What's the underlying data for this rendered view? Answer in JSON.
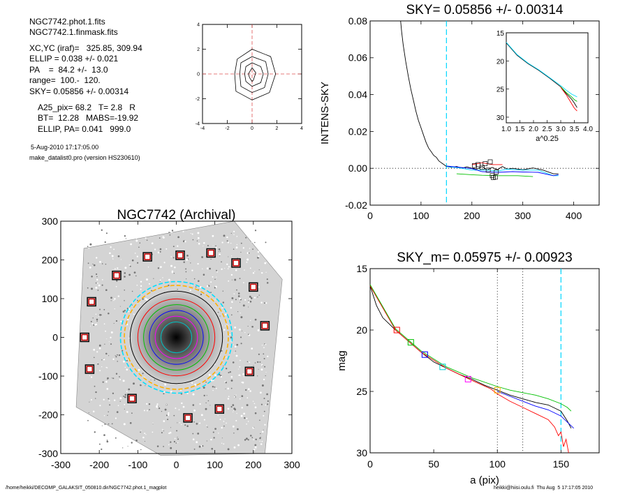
{
  "info": {
    "lines": [
      "NGC7742.phot.1.fits",
      "NGC7742.1.finmask.fits",
      "XC,YC (iraf)=   325.85, 309.94",
      "ELLIP = 0.038 +/- 0.021",
      "PA    =  84.2 +/-  13.0",
      "range=  100.-  120.",
      "SKY= 0.05856 +/- 0.00314",
      "A25_pix= 68.2   T= 2.8   R",
      "BT=  12.28   MABS=-19.92",
      "ELLIP, PA= 0.041   999.0"
    ],
    "date": "5-Aug-2010 17:17:05.00",
    "program": "make_datalist0.pro (version HS230610)"
  },
  "footer": {
    "left": "/home/heikki/DECOMP_GALAKSIT_050810.dir/NGC7742.phot.1_magplot",
    "right": "heikki@hiisi.oulu.fi  Thu Aug  5 17:17:05 2010"
  },
  "chart_data": [
    {
      "id": "contour",
      "type": "contour",
      "title": "",
      "xlim": [
        -4,
        4
      ],
      "ylim": [
        -4,
        4
      ],
      "xticks": [
        "-4",
        "-2",
        "0",
        "2",
        "4"
      ],
      "yticks": [
        "4",
        "2",
        "0",
        "-2",
        "-4"
      ],
      "levels": [
        [
          [
            -1.4,
            0
          ],
          [
            -1.2,
            1.2
          ],
          [
            0,
            2
          ],
          [
            1.5,
            1.4
          ],
          [
            1.9,
            0
          ],
          [
            1.4,
            -1.5
          ],
          [
            0,
            -2.1
          ],
          [
            -1.3,
            -1.4
          ]
        ],
        [
          [
            -1.0,
            0
          ],
          [
            -0.9,
            0.9
          ],
          [
            0,
            1.4
          ],
          [
            1.1,
            1.0
          ],
          [
            1.3,
            0
          ],
          [
            1.0,
            -1.1
          ],
          [
            0,
            -1.5
          ],
          [
            -0.9,
            -1.0
          ]
        ],
        [
          [
            -0.6,
            0
          ],
          [
            -0.5,
            0.6
          ],
          [
            0,
            0.9
          ],
          [
            0.7,
            0.6
          ],
          [
            0.9,
            0
          ],
          [
            0.7,
            -0.7
          ],
          [
            0,
            -1.0
          ],
          [
            -0.5,
            -0.6
          ]
        ],
        [
          [
            -0.3,
            0
          ],
          [
            0,
            0.5
          ],
          [
            0.3,
            0.1
          ],
          [
            0.1,
            -0.5
          ],
          [
            0,
            -0.6
          ],
          [
            -0.2,
            -0.3
          ]
        ]
      ],
      "crosshair": [
        0,
        0
      ]
    },
    {
      "id": "sky",
      "type": "line",
      "title": "SKY= 0.05856 +/- 0.00314",
      "xlabel": "",
      "ylabel": "INTENS-SKY",
      "xlim": [
        0,
        450
      ],
      "ylim": [
        -0.02,
        0.08
      ],
      "xticks": [
        "0",
        "100",
        "200",
        "300",
        "400"
      ],
      "yticks": [
        "0.08",
        "0.06",
        "0.04",
        "0.02",
        "0.00",
        "-0.02"
      ],
      "vline": 150,
      "series": [
        {
          "values": [
            [
              60,
              0.08
            ],
            [
              62,
              0.074
            ],
            [
              65,
              0.067
            ],
            [
              70,
              0.058
            ],
            [
              75,
              0.05
            ],
            [
              80,
              0.043
            ],
            [
              85,
              0.037
            ],
            [
              90,
              0.031
            ],
            [
              95,
              0.026
            ],
            [
              100,
              0.022
            ],
            [
              105,
              0.018
            ],
            [
              110,
              0.014
            ],
            [
              115,
              0.011
            ],
            [
              120,
              0.009
            ],
            [
              125,
              0.007
            ],
            [
              130,
              0.006
            ],
            [
              135,
              0.004
            ],
            [
              140,
              0.003
            ],
            [
              145,
              0.002
            ],
            [
              150,
              0.001
            ],
            [
              160,
              0.0005
            ],
            [
              170,
              0.001
            ],
            [
              180,
              0
            ],
            [
              190,
              0.0008
            ],
            [
              200,
              0
            ],
            [
              210,
              -0.0004
            ],
            [
              220,
              0.001
            ],
            [
              230,
              -0.001
            ],
            [
              240,
              0.0005
            ],
            [
              250,
              -0.0008
            ],
            [
              260,
              0.001
            ],
            [
              270,
              -0.0005
            ],
            [
              280,
              0
            ],
            [
              300,
              -0.0008
            ],
            [
              320,
              0.0002
            ],
            [
              340,
              -0.001
            ],
            [
              360,
              -0.003
            ],
            [
              370,
              -0.003
            ]
          ]
        },
        {
          "values": [
            [
              150,
              0.001
            ],
            [
              180,
              0
            ],
            [
              200,
              -0.001
            ],
            [
              230,
              -0.001
            ],
            [
              250,
              -0.0015
            ],
            [
              270,
              -0.0005
            ],
            [
              300,
              -0.001
            ],
            [
              330,
              -0.001
            ],
            [
              360,
              -0.004
            ],
            [
              370,
              -0.004
            ]
          ]
        },
        {
          "values": [
            [
              150,
              0.0012
            ],
            [
              180,
              0.0004
            ],
            [
              200,
              -0.0002
            ],
            [
              220,
              -0.0018
            ],
            [
              250,
              -0.0022
            ],
            [
              280,
              -0.0018
            ],
            [
              300,
              -0.002
            ],
            [
              330,
              -0.0022
            ],
            [
              360,
              -0.004
            ],
            [
              370,
              -0.0035
            ]
          ]
        },
        {
          "values": [
            [
              170,
              -0.003
            ],
            [
              200,
              -0.0035
            ],
            [
              220,
              -0.0038
            ],
            [
              250,
              -0.004
            ],
            [
              290,
              -0.004
            ],
            [
              320,
              -0.0045
            ]
          ]
        },
        {
          "values": [
            [
              200,
              0.002
            ],
            [
              220,
              0.003
            ],
            [
              240,
              0.002
            ],
            [
              260,
              0.002
            ]
          ]
        }
      ],
      "markers": [
        [
          205,
          0.0015
        ],
        [
          212,
          0.002
        ],
        [
          220,
          0.0005
        ],
        [
          226,
          0.0025
        ],
        [
          232,
          -0.001
        ],
        [
          236,
          0.0035
        ],
        [
          240,
          -0.004
        ],
        [
          242,
          -0.005
        ],
        [
          246,
          -0.0048
        ],
        [
          248,
          -0.002
        ]
      ],
      "inset": {
        "xlabel": "a^0.25",
        "xlim": [
          1.0,
          4.0
        ],
        "ylim": [
          15,
          31
        ],
        "xticks": [
          "1.0",
          "1.5",
          "2.0",
          "2.5",
          "3.0",
          "3.5",
          "4.0"
        ],
        "yticks": [
          "15",
          "20",
          "25",
          "30"
        ],
        "series": [
          {
            "values": [
              [
                1.0,
                16.8
              ],
              [
                1.4,
                19.0
              ],
              [
                1.8,
                20.5
              ],
              [
                2.2,
                21.7
              ],
              [
                2.6,
                23.1
              ],
              [
                3.0,
                24.6
              ],
              [
                3.2,
                25.8
              ],
              [
                3.4,
                26.8
              ],
              [
                3.5,
                27.5
              ],
              [
                3.6,
                28.3
              ]
            ]
          },
          {
            "values": [
              [
                3.0,
                24.6
              ],
              [
                3.2,
                25.6
              ],
              [
                3.4,
                26.4
              ],
              [
                3.5,
                26.9
              ],
              [
                3.6,
                27.2
              ]
            ]
          },
          {
            "values": [
              [
                3.0,
                24.7
              ],
              [
                3.2,
                26.0
              ],
              [
                3.3,
                26.8
              ],
              [
                3.4,
                27.6
              ],
              [
                3.5,
                28.4
              ],
              [
                3.6,
                28.9
              ]
            ]
          },
          {
            "values": [
              [
                1.0,
                16.7
              ],
              [
                1.4,
                18.9
              ],
              [
                1.8,
                20.4
              ],
              [
                2.2,
                21.6
              ],
              [
                2.6,
                23.0
              ],
              [
                3.0,
                24.4
              ],
              [
                3.2,
                25.2
              ],
              [
                3.4,
                25.9
              ],
              [
                3.6,
                26.4
              ]
            ]
          }
        ]
      }
    },
    {
      "id": "image",
      "type": "image",
      "title": "NGC7742 (Archival)",
      "xlim": [
        -300,
        300
      ],
      "ylim": [
        -300,
        300
      ],
      "xticks": [
        "-300",
        "-200",
        "-100",
        "0",
        "100",
        "200",
        "300"
      ],
      "yticks": [
        "300",
        "200",
        "100",
        "0",
        "-100",
        "-200",
        "-300"
      ],
      "frame": [
        [
          -240,
          230
        ],
        [
          150,
          300
        ],
        [
          275,
          150
        ],
        [
          230,
          -300
        ],
        [
          -40,
          -305
        ],
        [
          -260,
          -180
        ]
      ],
      "boxes": [
        [
          -75,
          208
        ],
        [
          10,
          212
        ],
        [
          90,
          218
        ],
        [
          155,
          192
        ],
        [
          -155,
          160
        ],
        [
          -220,
          92
        ],
        [
          -238,
          0
        ],
        [
          -225,
          -82
        ],
        [
          -115,
          -158
        ],
        [
          30,
          -208
        ],
        [
          112,
          -185
        ],
        [
          190,
          -88
        ],
        [
          230,
          30
        ],
        [
          200,
          130
        ]
      ],
      "circles": [
        {
          "r": 145,
          "color": "#00e0ff",
          "dash": true
        },
        {
          "r": 135,
          "color": "#ffb000",
          "dash": true
        },
        {
          "r": 120,
          "color": "#000000",
          "dash": false
        },
        {
          "r": 100,
          "color": "#ff0000",
          "dash": false
        },
        {
          "r": 85,
          "color": "#00c000",
          "dash": false
        },
        {
          "r": 70,
          "color": "#0000ff",
          "dash": false
        },
        {
          "r": 55,
          "color": "#ff00ff",
          "dash": false
        },
        {
          "r": 40,
          "color": "#00c0c0",
          "dash": false
        }
      ]
    },
    {
      "id": "mag",
      "type": "line",
      "title": "SKY_m=  0.05975 +/- 0.00923",
      "xlabel": "a (pix)",
      "ylabel": "mag",
      "xlim": [
        0,
        180
      ],
      "ylim": [
        15,
        30
      ],
      "xticks": [
        "0",
        "50",
        "100",
        "150"
      ],
      "yticks": [
        "15",
        "20",
        "25",
        "30"
      ],
      "vlines_dotted": [
        100,
        120
      ],
      "vline_dashed": 150,
      "series": [
        {
          "values": [
            [
              0,
              16.4
            ],
            [
              5,
              18.0
            ],
            [
              10,
              19.0
            ],
            [
              20,
              20.0
            ],
            [
              30,
              20.9
            ],
            [
              40,
              21.8
            ],
            [
              50,
              22.6
            ],
            [
              60,
              23.1
            ],
            [
              70,
              23.6
            ],
            [
              80,
              24.0
            ],
            [
              90,
              24.5
            ],
            [
              100,
              24.9
            ],
            [
              110,
              25.3
            ],
            [
              120,
              25.6
            ],
            [
              130,
              25.9
            ],
            [
              140,
              26.1
            ],
            [
              150,
              26.6
            ],
            [
              155,
              27.4
            ],
            [
              158,
              28.0
            ]
          ]
        },
        {
          "values": [
            [
              0,
              16.4
            ],
            [
              20,
              20.0
            ],
            [
              40,
              21.8
            ],
            [
              60,
              23.1
            ],
            [
              80,
              24.1
            ],
            [
              95,
              24.8
            ],
            [
              100,
              25.2
            ],
            [
              110,
              25.8
            ],
            [
              120,
              26.3
            ],
            [
              130,
              26.8
            ],
            [
              140,
              27.3
            ],
            [
              145,
              27.9
            ],
            [
              148,
              28.6
            ],
            [
              150,
              28.3
            ],
            [
              152,
              29.5
            ],
            [
              154,
              28.9
            ],
            [
              156,
              30.0
            ]
          ]
        },
        {
          "values": [
            [
              0,
              16.3
            ],
            [
              20,
              19.9
            ],
            [
              40,
              21.7
            ],
            [
              60,
              23.0
            ],
            [
              80,
              23.9
            ],
            [
              100,
              24.6
            ],
            [
              110,
              24.9
            ],
            [
              120,
              25.1
            ],
            [
              130,
              25.3
            ],
            [
              140,
              25.6
            ],
            [
              150,
              26.0
            ],
            [
              155,
              26.3
            ],
            [
              158,
              26.6
            ]
          ]
        },
        {
          "values": [
            [
              100,
              25.0
            ],
            [
              110,
              25.4
            ],
            [
              120,
              25.8
            ],
            [
              130,
              26.2
            ],
            [
              140,
              26.5
            ],
            [
              150,
              27.0
            ],
            [
              160,
              28.0
            ]
          ]
        }
      ],
      "markers": [
        {
          "x": 21,
          "y": 20.0,
          "color": "#ff0000"
        },
        {
          "x": 32,
          "y": 21.0,
          "color": "#00c000"
        },
        {
          "x": 43,
          "y": 22.0,
          "color": "#0000ff"
        },
        {
          "x": 57,
          "y": 23.0,
          "color": "#00d0d0"
        },
        {
          "x": 77,
          "y": 24.0,
          "color": "#ff00ff"
        },
        {
          "x": 100,
          "y": 24.9,
          "color": "#ffb000"
        }
      ]
    }
  ]
}
